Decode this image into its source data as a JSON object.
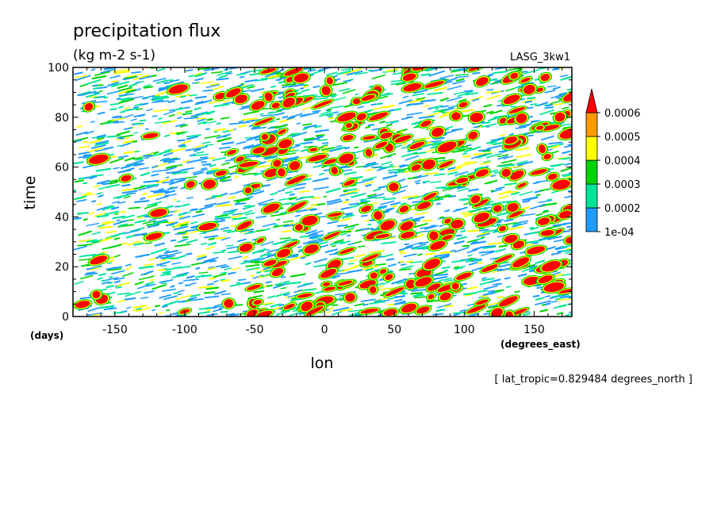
{
  "chart_data": {
    "type": "heatmap",
    "title": "precipitation flux",
    "subtitle": "(kg m-2 s-1)",
    "source_label": "LASG_3kw1",
    "xlabel": "lon",
    "x_units": "(degrees_east)",
    "ylabel": "time",
    "y_units": "(days)",
    "footnote": "[ lat_tropic=0.829484 degrees_north ]",
    "xlim": [
      -180,
      177
    ],
    "ylim": [
      0,
      100
    ],
    "x_ticks": [
      -150,
      -100,
      -50,
      0,
      50,
      100,
      150
    ],
    "y_ticks": [
      0,
      20,
      40,
      60,
      80,
      100
    ],
    "x_tick_labels": [
      "-150",
      "-100",
      "-50",
      "0",
      "50",
      "100",
      "150"
    ],
    "y_tick_labels": [
      "0",
      "20",
      "40",
      "60",
      "80",
      "100"
    ],
    "grid": false,
    "legend_position": "right",
    "colorbar": {
      "levels": [
        0.0001,
        0.0002,
        0.0003,
        0.0004,
        0.0005,
        0.0006
      ],
      "labels": [
        "1e-04",
        "0.0002",
        "0.0003",
        "0.0004",
        "0.0005",
        "0.0006"
      ],
      "colors": [
        "#1e9bff",
        "#00e59a",
        "#00d400",
        "#ffff00",
        "#ff9900",
        "#ff0000"
      ],
      "extend": "max"
    },
    "field_description_note": null
  }
}
